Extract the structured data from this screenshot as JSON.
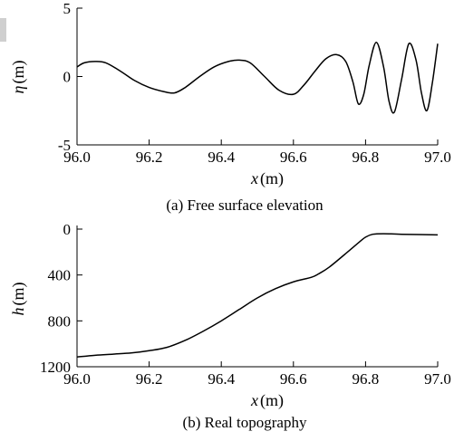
{
  "chart_data": [
    {
      "type": "line",
      "caption": "(a) Free surface elevation",
      "xlabel_var": "x",
      "xlabel_unit": "(m)",
      "ylabel_var": "η",
      "ylabel_unit": "(m)",
      "xlim": [
        96.0,
        97.0
      ],
      "ylim": [
        -5,
        5
      ],
      "xticks": [
        96.0,
        96.2,
        96.4,
        96.6,
        96.8,
        97.0
      ],
      "xtick_labels": [
        "96.0",
        "96.2",
        "96.4",
        "96.6",
        "96.8",
        "97.0"
      ],
      "yticks": [
        5,
        0,
        -5
      ],
      "ytick_labels": [
        "5",
        "0",
        "-5"
      ],
      "grid": false,
      "series": [
        {
          "x": [
            96.0,
            96.02,
            96.05,
            96.08,
            96.12,
            96.16,
            96.2,
            96.24,
            96.27,
            96.3,
            96.34,
            96.38,
            96.42,
            96.45,
            96.48,
            96.52,
            96.56,
            96.6,
            96.63,
            96.66,
            96.69,
            96.72,
            96.745,
            96.765,
            96.78,
            96.795,
            96.81,
            96.83,
            96.85,
            96.865,
            96.88,
            96.9,
            96.92,
            96.94,
            96.955,
            96.97,
            96.985,
            97.0
          ],
          "y": [
            0.7,
            1.0,
            1.1,
            1.0,
            0.4,
            -0.3,
            -0.8,
            -1.1,
            -1.2,
            -0.8,
            0.0,
            0.7,
            1.1,
            1.2,
            1.0,
            0.0,
            -1.0,
            -1.3,
            -0.6,
            0.4,
            1.3,
            1.6,
            1.1,
            -0.4,
            -2.0,
            -1.3,
            0.8,
            2.5,
            0.7,
            -1.8,
            -2.6,
            -0.2,
            2.4,
            1.2,
            -1.2,
            -2.5,
            -0.5,
            2.4
          ]
        }
      ]
    },
    {
      "type": "line",
      "caption": "(b) Real topography",
      "xlabel_var": "x",
      "xlabel_unit": "(m)",
      "ylabel_var": "h",
      "ylabel_unit": "(m)",
      "xlim": [
        96.0,
        97.0
      ],
      "ylim": [
        1200,
        0
      ],
      "y_inverted": true,
      "xticks": [
        96.0,
        96.2,
        96.4,
        96.6,
        96.8,
        97.0
      ],
      "xtick_labels": [
        "96.0",
        "96.2",
        "96.4",
        "96.6",
        "96.8",
        "97.0"
      ],
      "yticks": [
        0,
        400,
        800,
        1200
      ],
      "ytick_labels": [
        "0",
        "400",
        "800",
        "1200"
      ],
      "grid": false,
      "series": [
        {
          "x": [
            96.0,
            96.05,
            96.1,
            96.15,
            96.2,
            96.25,
            96.3,
            96.35,
            96.4,
            96.45,
            96.5,
            96.55,
            96.6,
            96.65,
            96.67,
            96.7,
            96.75,
            96.78,
            96.8,
            96.82,
            96.85,
            96.9,
            97.0
          ],
          "y": [
            1115,
            1100,
            1090,
            1080,
            1060,
            1030,
            970,
            890,
            800,
            700,
            600,
            520,
            460,
            420,
            390,
            330,
            200,
            120,
            70,
            45,
            40,
            45,
            50
          ]
        }
      ]
    }
  ]
}
